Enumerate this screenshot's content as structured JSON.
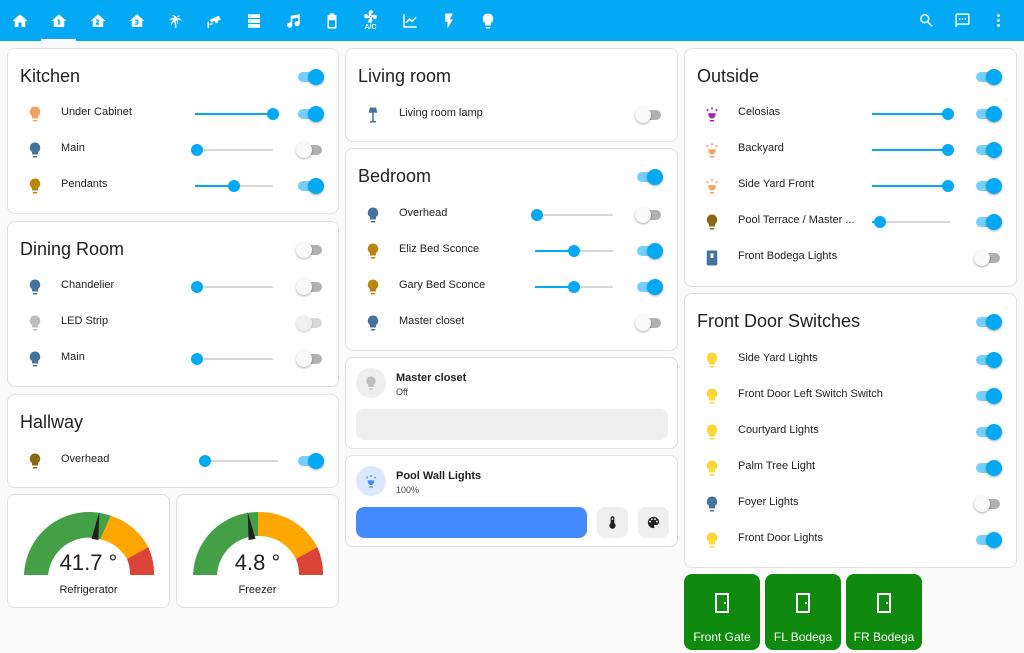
{
  "topbar": {
    "tabs": [
      "home-icon",
      "home-floor-1-icon",
      "home-floor-2-icon",
      "home-floor-3-icon",
      "palm-tree-icon",
      "cctv-icon",
      "server-icon",
      "music-icon",
      "battery-icon",
      "air-conditioner-icon",
      "chart-line-icon",
      "flash-icon",
      "lightbulb-icon"
    ],
    "ac_label": "A/C",
    "active_tab": 1,
    "actions": [
      "search-icon",
      "assist-chat-icon",
      "dots-vertical-icon"
    ],
    "color": "#03a9f4"
  },
  "kitchen": {
    "title": "Kitchen",
    "on": true,
    "rows": [
      {
        "label": "Under Cabinet",
        "color": "#f4a261",
        "brightness": 1.0,
        "on": true
      },
      {
        "label": "Main",
        "color": "#44739e",
        "brightness": 0.02,
        "on": false
      },
      {
        "label": "Pendants",
        "color": "#b8860b",
        "brightness": 0.5,
        "on": true
      }
    ]
  },
  "dining": {
    "title": "Dining Room",
    "on": false,
    "rows": [
      {
        "label": "Chandelier",
        "color": "#44739e",
        "brightness": 0.02,
        "on": false
      },
      {
        "label": "LED Strip",
        "color": "#bdbdbd",
        "on": false,
        "disabled": true
      },
      {
        "label": "Main",
        "color": "#44739e",
        "brightness": 0.02,
        "on": false
      }
    ]
  },
  "hallway": {
    "title": "Hallway",
    "rows": [
      {
        "label": "Overhead",
        "color": "#8b6914",
        "brightness": 0.07,
        "on": true
      }
    ]
  },
  "fridge": {
    "value": "41.7 °",
    "name": "Refrigerator",
    "fraction": 0.55
  },
  "freezer": {
    "value": "4.8 °",
    "name": "Freezer",
    "fraction": 0.45
  },
  "living": {
    "title": "Living room",
    "rows": [
      {
        "label": "Living room lamp",
        "color": "#44739e",
        "on": false
      }
    ]
  },
  "bedroom": {
    "title": "Bedroom",
    "on": true,
    "rows": [
      {
        "label": "Overhead",
        "color": "#44739e",
        "brightness": 0.02,
        "on": false
      },
      {
        "label": "Eliz Bed Sconce",
        "color": "#b8860b",
        "brightness": 0.5,
        "on": true
      },
      {
        "label": "Gary Bed Sconce",
        "color": "#b8860b",
        "brightness": 0.5,
        "on": true
      },
      {
        "label": "Master closet",
        "color": "#44739e",
        "on": false
      }
    ]
  },
  "tile_closet": {
    "name": "Master closet",
    "state": "Off"
  },
  "tile_pool": {
    "name": "Pool Wall Lights",
    "state": "100%",
    "brightness": 1.0,
    "color": "#448aff"
  },
  "outside": {
    "title": "Outside",
    "on": true,
    "rows": [
      {
        "label": "Celosias",
        "color": "#9c27b0",
        "brightness": 0.98,
        "on": true
      },
      {
        "label": "Backyard",
        "color": "#f4a261",
        "brightness": 0.98,
        "on": true
      },
      {
        "label": "Side Yard Front",
        "color": "#f4a261",
        "brightness": 0.98,
        "on": true
      },
      {
        "label": "Pool Terrace / Master ...",
        "color": "#8b6914",
        "brightness": 0.1,
        "on": true
      },
      {
        "label": "Front Bodega Lights",
        "color": "#44739e",
        "on": false
      }
    ]
  },
  "front_door": {
    "title": "Front Door Switches",
    "on": true,
    "rows": [
      {
        "label": "Side Yard Lights",
        "color": "#fdd835",
        "on": true
      },
      {
        "label": "Front Door Left Switch Switch",
        "color": "#fdd835",
        "on": true
      },
      {
        "label": "Courtyard Lights",
        "color": "#fdd835",
        "on": true
      },
      {
        "label": "Palm Tree Light",
        "color": "#fdd835",
        "on": true
      },
      {
        "label": "Foyer Lights",
        "color": "#44739e",
        "on": false
      },
      {
        "label": "Front Door Lights",
        "color": "#fdd835",
        "on": true
      }
    ]
  },
  "doors": [
    {
      "label": "Front Gate",
      "color": "#0f8a0f"
    },
    {
      "label": "FL Bodega",
      "color": "#0f8a0f"
    },
    {
      "label": "FR Bodega",
      "color": "#0f8a0f"
    }
  ]
}
